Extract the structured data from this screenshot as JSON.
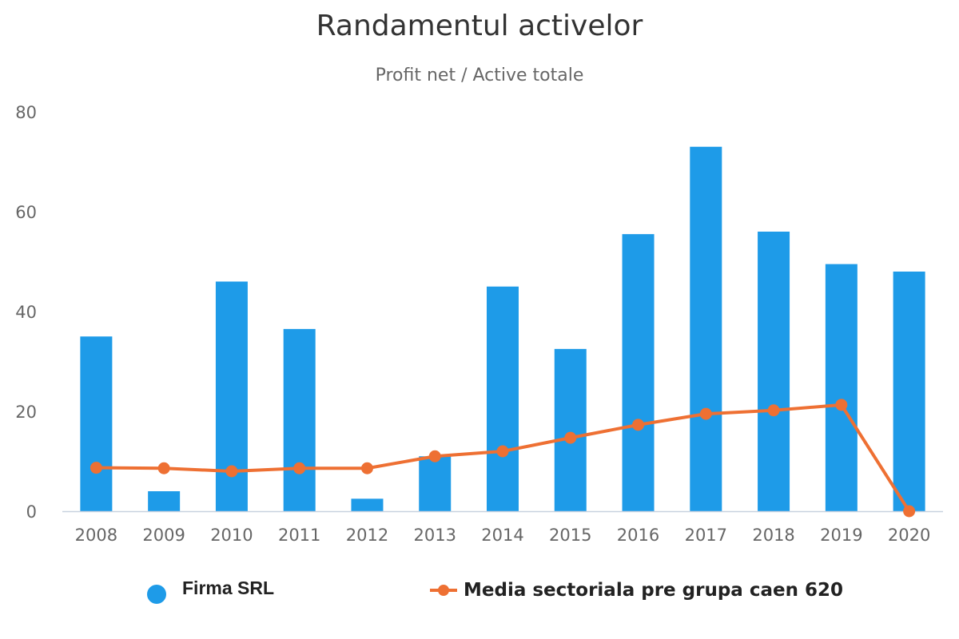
{
  "chart_data": {
    "type": "bar",
    "title": "Randamentul activelor",
    "subtitle": "Profit net / Active totale",
    "xlabel": "",
    "ylabel": "",
    "categories": [
      "2008",
      "2009",
      "2010",
      "2011",
      "2012",
      "2013",
      "2014",
      "2015",
      "2016",
      "2017",
      "2018",
      "2019",
      "2020"
    ],
    "ylim": [
      0,
      80
    ],
    "yticks": [
      0,
      20,
      40,
      60,
      80
    ],
    "grid": false,
    "legend_position": "bottom",
    "series": [
      {
        "name": "Firma SRL",
        "type": "bar",
        "color": "#1e9be8",
        "values": [
          35,
          4,
          46,
          36.5,
          2.5,
          11,
          45,
          32.5,
          55.5,
          73,
          56,
          49.5,
          48
        ]
      },
      {
        "name": "Media sectoriala pre grupa caen 620",
        "type": "line",
        "color": "#ee7033",
        "values": [
          8.7,
          8.6,
          8,
          8.6,
          8.6,
          11,
          12,
          14.7,
          17.3,
          19.5,
          20.2,
          21.3,
          0
        ]
      }
    ]
  }
}
